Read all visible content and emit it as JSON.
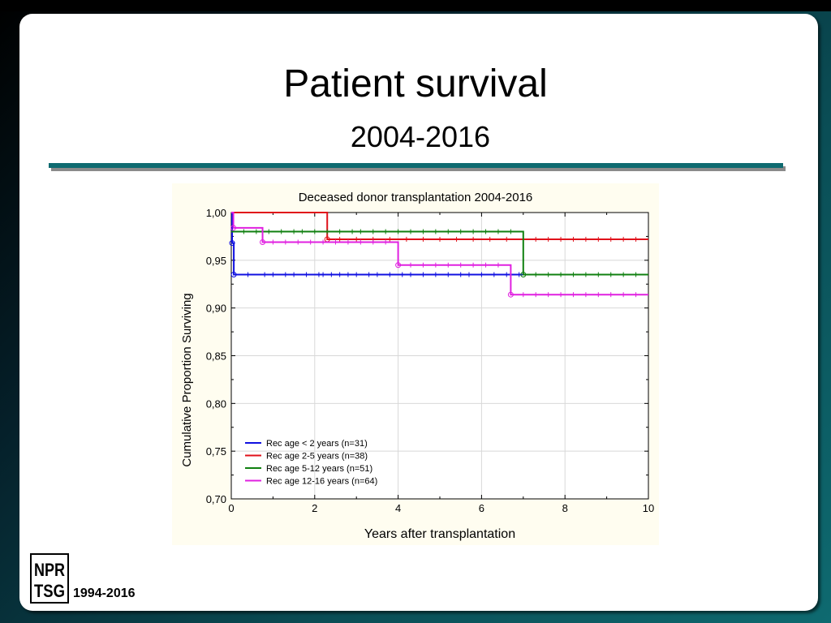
{
  "slide": {
    "title": "Patient survival",
    "subtitle": "2004-2016",
    "footer_years": "1994-2016",
    "logo_text": [
      "NPR",
      "TSG"
    ]
  },
  "colors": {
    "accent": "#0e6a70",
    "chart_bg": "#fffdf0"
  },
  "chart_data": {
    "type": "line",
    "step": true,
    "title": "Deceased donor transplantation 2004-2016",
    "xlabel": "Years after transplantation",
    "ylabel": "Cumulative Proportion Surviving",
    "xlim": [
      0,
      10
    ],
    "ylim": [
      0.7,
      1.0
    ],
    "xticks": [
      0,
      2,
      4,
      6,
      8,
      10
    ],
    "xtick_labels": [
      "0",
      "2",
      "4",
      "6",
      "8",
      "10"
    ],
    "yticks": [
      0.7,
      0.75,
      0.8,
      0.85,
      0.9,
      0.95,
      1.0
    ],
    "ytick_labels": [
      "0,70",
      "0,75",
      "0,80",
      "0,85",
      "0,90",
      "0,95",
      "1,00"
    ],
    "grid": true,
    "legend_position": "bottom-left",
    "series": [
      {
        "name": "Rec age < 2 years (n=31)",
        "color": "#1010e0",
        "steps": [
          [
            0,
            1.0
          ],
          [
            0.02,
            0.968
          ],
          [
            0.06,
            0.935
          ],
          [
            10,
            0.935
          ]
        ],
        "events": [
          [
            0.02,
            0.968
          ],
          [
            0.06,
            0.935
          ]
        ],
        "censored": [
          0.4,
          0.8,
          1.0,
          1.3,
          1.5,
          1.8,
          2.1,
          2.2,
          2.4,
          2.6,
          2.8,
          3.0,
          3.3,
          3.5,
          3.8,
          4.1,
          4.3,
          4.6,
          4.9,
          5.2,
          5.5,
          5.7,
          6.0,
          6.3,
          6.6,
          6.9
        ]
      },
      {
        "name": "Rec age 2-5 years (n=38)",
        "color": "#e0101a",
        "steps": [
          [
            0,
            1.0
          ],
          [
            2.3,
            0.972
          ],
          [
            10,
            0.972
          ]
        ],
        "events": [
          [
            2.3,
            0.972
          ]
        ],
        "censored": [
          2.6,
          3.0,
          3.4,
          3.8,
          4.2,
          4.6,
          5.0,
          5.4,
          5.8,
          6.2,
          6.6,
          7.0,
          7.3,
          7.6,
          7.9,
          8.2,
          8.5,
          8.8,
          9.1,
          9.4,
          9.7
        ]
      },
      {
        "name": "Rec age 5-12 years (n=51)",
        "color": "#108010",
        "steps": [
          [
            0,
            0.98
          ],
          [
            7.0,
            0.98
          ],
          [
            7.0,
            0.935
          ],
          [
            10,
            0.935
          ]
        ],
        "events": [
          [
            7.0,
            0.935
          ]
        ],
        "censored": [
          0.3,
          0.6,
          0.9,
          1.2,
          1.5,
          1.7,
          2.0,
          2.3,
          2.6,
          2.9,
          3.1,
          3.4,
          3.7,
          4.0,
          4.3,
          4.6,
          4.9,
          5.2,
          5.5,
          5.8,
          6.1,
          6.4,
          6.7,
          7.3,
          7.6,
          7.9,
          8.2,
          8.5,
          8.8,
          9.1,
          9.4,
          9.7
        ]
      },
      {
        "name": "Rec age 12-16 years (n=64)",
        "color": "#e020e0",
        "steps": [
          [
            0,
            1.0
          ],
          [
            0.05,
            0.984
          ],
          [
            0.75,
            0.984
          ],
          [
            0.75,
            0.969
          ],
          [
            4.0,
            0.969
          ],
          [
            4.0,
            0.945
          ],
          [
            6.7,
            0.945
          ],
          [
            6.7,
            0.914
          ],
          [
            10,
            0.914
          ]
        ],
        "events": [
          [
            0.05,
            0.984
          ],
          [
            0.75,
            0.969
          ],
          [
            4.0,
            0.945
          ],
          [
            6.7,
            0.914
          ]
        ],
        "censored": [
          1.0,
          1.3,
          1.6,
          1.9,
          2.2,
          2.5,
          2.8,
          3.1,
          3.4,
          3.7,
          4.3,
          4.6,
          4.9,
          5.2,
          5.5,
          5.8,
          6.1,
          6.4,
          7.0,
          7.3,
          7.6,
          7.9,
          8.2,
          8.5,
          8.8,
          9.1,
          9.4,
          9.7
        ]
      }
    ]
  }
}
